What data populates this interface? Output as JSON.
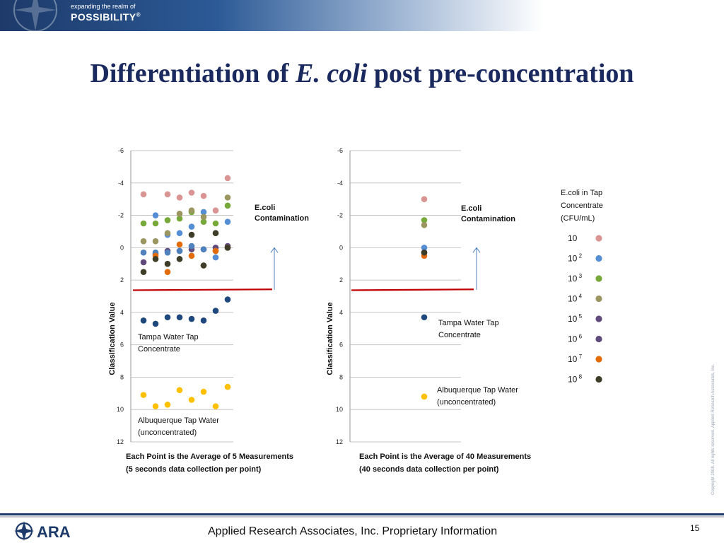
{
  "header": {
    "tagline_small": "expanding the realm of",
    "tagline_big": "POSSIBILITY",
    "tagline_mark": "®"
  },
  "slide": {
    "title_part1": "Differentiation of ",
    "title_italic": "E. coli",
    "title_part2": " post pre-concentration",
    "page_number": "15"
  },
  "footer": {
    "company_text": "Applied Research Associates, Inc. Proprietary Information",
    "logo_text": "ARA"
  },
  "copyright": "Copyright 2008. All rights reserved. Applied Research Associates, Inc.",
  "legend": {
    "title_lines": [
      "E.coli in Tap",
      "Concentrate",
      "(CFU/mL)"
    ],
    "entries": [
      {
        "base": "10",
        "exp": "",
        "color": "#d99594"
      },
      {
        "base": "10",
        "exp": "2",
        "color": "#558ed5"
      },
      {
        "base": "10",
        "exp": "3",
        "color": "#77a83a"
      },
      {
        "base": "10",
        "exp": "4",
        "color": "#9b9560"
      },
      {
        "base": "10",
        "exp": "5",
        "color": "#604a7b"
      },
      {
        "base": "10",
        "exp": "6",
        "color": "#604a7b"
      },
      {
        "base": "10",
        "exp": "7",
        "color": "#e36c09"
      },
      {
        "base": "10",
        "exp": "8",
        "color": "#3d3d28"
      }
    ]
  },
  "chart_data": [
    {
      "type": "scatter",
      "ylabel": "Classification Value",
      "ylim": [
        -6,
        12
      ],
      "y_inverted": true,
      "y_ticks": [
        "-6",
        "-4",
        "-2",
        "0",
        "2",
        "4",
        "6",
        "8",
        "10",
        "12"
      ],
      "grid": true,
      "xlabel_lines": [
        "Each Point is the Average of 5 Measurements",
        "(5 seconds data collection per point)"
      ],
      "threshold_y": 2.6,
      "annotations": {
        "contamination": [
          "E.coli",
          "Contamination"
        ],
        "tampa": [
          "Tampa Water Tap",
          "Concentrate"
        ],
        "albuquerque": [
          "Albuquerque Tap Water",
          "(unconcentrated)"
        ]
      },
      "series": [
        {
          "color": "#d99594",
          "x": [
            1,
            3,
            4,
            5,
            6,
            7,
            8
          ],
          "y": [
            -3.3,
            -3.3,
            -3.1,
            -3.4,
            -3.2,
            -2.3,
            -4.3
          ]
        },
        {
          "color": "#558ed5",
          "x": [
            2,
            3,
            4,
            5,
            6,
            7,
            8
          ],
          "y": [
            -2.0,
            -0.8,
            -0.9,
            -1.3,
            -2.2,
            0.6,
            -1.6
          ]
        },
        {
          "color": "#77a83a",
          "x": [
            1,
            2,
            3,
            4,
            5,
            6,
            7,
            8
          ],
          "y": [
            -1.5,
            -1.5,
            -1.7,
            -1.8,
            -2.2,
            -1.6,
            -1.5,
            -2.6
          ]
        },
        {
          "color": "#9b9560",
          "x": [
            1,
            2,
            3,
            4,
            5,
            6,
            7,
            8
          ],
          "y": [
            -0.4,
            -0.4,
            -0.9,
            -2.1,
            -2.3,
            -1.9,
            -0.9,
            -3.1
          ]
        },
        {
          "color": "#604a7b",
          "x": [
            1,
            2,
            3,
            4,
            5,
            6,
            7,
            8
          ],
          "y": [
            0.9,
            0.4,
            0.2,
            0.2,
            0.1,
            0.1,
            0.0,
            -0.1
          ]
        },
        {
          "color": "#4f81bd",
          "x": [
            1,
            2,
            3,
            4,
            5,
            6,
            7,
            8
          ],
          "y": [
            0.3,
            0.3,
            0.3,
            0.2,
            -0.1,
            0.1,
            0.2,
            0.0
          ]
        },
        {
          "color": "#e36c09",
          "x": [
            2,
            3,
            4,
            5,
            6,
            7,
            8
          ],
          "y": [
            0.5,
            1.5,
            -0.2,
            0.5,
            1.1,
            0.2,
            0.0
          ]
        },
        {
          "color": "#3d3d28",
          "x": [
            1,
            2,
            3,
            4,
            5,
            6,
            7,
            8
          ],
          "y": [
            1.5,
            0.7,
            1.0,
            0.7,
            -0.8,
            1.1,
            -0.9,
            0.0
          ]
        },
        {
          "color": "#1f497d",
          "x": [
            1,
            2,
            3,
            4,
            5,
            6,
            7,
            8
          ],
          "y": [
            4.5,
            4.7,
            4.3,
            4.3,
            4.4,
            4.5,
            3.9,
            3.2
          ]
        },
        {
          "color": "#ffc000",
          "x": [
            1,
            2,
            3,
            4,
            5,
            6,
            7,
            8
          ],
          "y": [
            9.1,
            9.8,
            9.7,
            8.8,
            9.4,
            8.9,
            9.8,
            8.6
          ]
        }
      ]
    },
    {
      "type": "scatter",
      "ylabel": "Classification Value",
      "ylim": [
        -6,
        12
      ],
      "y_inverted": true,
      "y_ticks": [
        "-6",
        "-4",
        "-2",
        "0",
        "2",
        "4",
        "6",
        "8",
        "10",
        "12"
      ],
      "grid": true,
      "xlabel_lines": [
        "Each Point is the Average of 40 Measurements",
        "(40 seconds data collection per point)"
      ],
      "threshold_y": 2.6,
      "annotations": {
        "contamination": [
          "E.coli",
          "Contamination"
        ],
        "tampa": [
          "Tampa Water Tap",
          "Concentrate"
        ],
        "albuquerque": [
          "Albuquerque Tap Water",
          "(unconcentrated)"
        ]
      },
      "series": [
        {
          "color": "#d99594",
          "x": [
            1
          ],
          "y": [
            -3.0
          ]
        },
        {
          "color": "#558ed5",
          "x": [
            1
          ],
          "y": [
            0.0
          ]
        },
        {
          "color": "#77a83a",
          "x": [
            1
          ],
          "y": [
            -1.7
          ]
        },
        {
          "color": "#9b9560",
          "x": [
            1
          ],
          "y": [
            -1.4
          ]
        },
        {
          "color": "#604a7b",
          "x": [
            1
          ],
          "y": [
            0.3
          ]
        },
        {
          "color": "#e36c09",
          "x": [
            1
          ],
          "y": [
            0.5
          ]
        },
        {
          "color": "#3d3d28",
          "x": [
            1
          ],
          "y": [
            0.3
          ]
        },
        {
          "color": "#1f497d",
          "x": [
            1
          ],
          "y": [
            4.3
          ]
        },
        {
          "color": "#ffc000",
          "x": [
            1
          ],
          "y": [
            9.2
          ]
        }
      ]
    }
  ]
}
